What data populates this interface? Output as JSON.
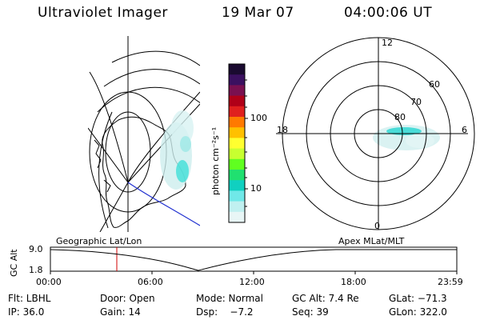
{
  "header": {
    "instrument": "Ultraviolet Imager",
    "date": "19 Mar 07",
    "time": "04:00:06 UT"
  },
  "colorbar": {
    "label": "photon cm⁻²s⁻¹",
    "ticks": [
      "100",
      "10"
    ],
    "colors": [
      "#1a0a30",
      "#3b1060",
      "#7a1050",
      "#b00018",
      "#e0201e",
      "#ff7a00",
      "#ffc000",
      "#ffff30",
      "#c8ff30",
      "#60ff20",
      "#20e070",
      "#10d0c0",
      "#70e8e8",
      "#c0f0f0",
      "#e8f6f6"
    ]
  },
  "polar": {
    "lat_labels": [
      "80",
      "70",
      "60"
    ],
    "mlt_labels": [
      "12",
      "6",
      "0",
      "18"
    ]
  },
  "timeline": {
    "ylabel": "GC Alt",
    "ymax": "9.0",
    "ymin": "1.8",
    "left_title": "Geographic Lat/Lon",
    "right_title": "Apex MLat/MLT",
    "ticks": [
      "00:00",
      "06:00",
      "12:00",
      "18:00",
      "23:59"
    ],
    "marker_color": "#d00000"
  },
  "info": {
    "flt": "Flt: LBHL",
    "door": "Door: Open",
    "mode": "Mode: Normal",
    "gcalt": "GC Alt: 7.4 Re",
    "glat": "GLat: −71.3",
    "ip": "IP: 36.0",
    "gain": "Gain: 14",
    "dsp": "Dsp:    −7.2",
    "seq": "Seq: 39",
    "glon": "GLon: 322.0"
  }
}
